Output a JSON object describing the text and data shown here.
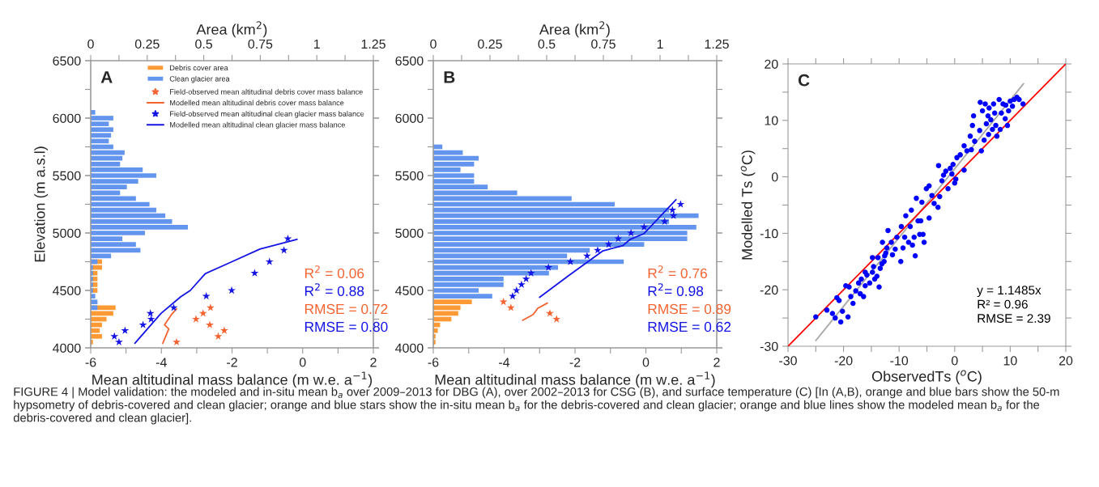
{
  "chart_data": [
    {
      "type": "bar",
      "orientation": "horizontal",
      "x2label": "Area (km$^{2}$)",
      "tick_labels": "x",
      "x2lim": [
        0,
        1.25
      ],
      "x2ticks": [
        0,
        {
          "value": 0.125,
          "label": null
        },
        0.25,
        {
          "value": 0.375,
          "label": null
        },
        0.5,
        {
          "value": 0.625,
          "label": null
        },
        0.75,
        {
          "value": 0.875,
          "label": null
        },
        1,
        {
          "value": 1.125,
          "label": null
        },
        1.25
      ],
      "ylim": [
        4000,
        6500
      ],
      "yticks": [
        4000,
        {
          "value": 4250,
          "label": null
        },
        4500,
        {
          "value": 4750,
          "label": null
        },
        5000,
        {
          "value": 5250,
          "label": null
        },
        5500,
        {
          "value": 5750,
          "label": null
        },
        6000,
        {
          "value": 6250,
          "label": null
        },
        6500
      ],
      "legend": "top right",
      "x": [
        4050,
        4100,
        4150,
        4200,
        4250,
        4300,
        4350,
        4400,
        4450,
        4500,
        4550,
        4600,
        4650,
        4700,
        4750,
        4800,
        4850,
        4900,
        4950,
        5000,
        5050,
        5100,
        5150,
        5200,
        5250,
        5300,
        5350,
        5400,
        5450,
        5500,
        5550,
        5600,
        5650,
        5700,
        5750,
        5800,
        5850,
        5900,
        5950,
        6000,
        6050
      ],
      "series": [
        {
          "name": "Debris cover area",
          "axis": "x2",
          "color": "#fd9a35",
          "values": [
            0.01,
            0.05,
            0.04,
            0.05,
            0.07,
            0.1,
            0.11,
            null,
            null,
            0.03,
            0.03,
            0.03,
            0.03,
            0.05,
            0.05,
            null,
            null,
            null,
            null,
            null,
            null,
            null,
            null,
            null,
            null,
            null,
            null,
            null,
            null,
            null,
            null,
            null,
            null,
            null,
            null,
            null,
            null,
            null,
            null,
            null,
            null
          ]
        },
        {
          "name": "Clean glacier area",
          "axis": "x2",
          "color": "#6395ee",
          "values": [
            null,
            null,
            null,
            null,
            null,
            null,
            0.03,
            0.03,
            0.02,
            0.01,
            0.01,
            0.01,
            0.01,
            0.01,
            0.03,
            0.09,
            0.22,
            0.2,
            0.14,
            0.24,
            0.43,
            0.36,
            0.33,
            0.29,
            0.26,
            0.2,
            0.13,
            0.16,
            0.21,
            0.29,
            0.23,
            0.13,
            0.14,
            0.15,
            0.1,
            0.08,
            0.09,
            0.1,
            0.08,
            0.1,
            0.02
          ]
        }
      ]
    },
    {
      "type": "line",
      "title": "A",
      "xlabel": "Mean altitudinal mass balance (m w.e. a$^{−1}$)",
      "ylabel": "Elevation (m a.s.l)",
      "xlim": [
        -6,
        2
      ],
      "xticks": [
        -6,
        {
          "value": -5,
          "label": null
        },
        -4,
        {
          "value": -3,
          "label": null
        },
        -2,
        {
          "value": -1,
          "label": null
        },
        0,
        {
          "value": 1,
          "label": null
        },
        2
      ],
      "ylim": [
        4000,
        6500
      ],
      "yticks": [
        4000,
        {
          "value": 4250,
          "label": null
        },
        4500,
        {
          "value": 4750,
          "label": null
        },
        5000,
        {
          "value": 5250,
          "label": null
        },
        5500,
        {
          "value": 5750,
          "label": null
        },
        6000,
        {
          "value": 6250,
          "label": null
        },
        6500
      ],
      "legend": "top right",
      "series": [
        {
          "name": "Field-observed mean altitudinal debris cover mass balance",
          "type": "scatter",
          "marker": "star",
          "color": "#f4622f",
          "x": [
            -2.61,
            -2.82,
            -3.02,
            -2.63,
            -2.22,
            -2.39,
            -3.57
          ],
          "values": [
            4350,
            4300,
            4250,
            4200,
            4150,
            4100,
            4050
          ]
        },
        {
          "name": "Modelled mean altitudinal debris cover mass balance",
          "type": "line",
          "color": "#f4622f",
          "x": [
            -3.96,
            -3.85,
            -3.79,
            -3.91,
            -3.7,
            -3.57
          ],
          "values": [
            4040,
            4120,
            4165,
            4200,
            4295,
            4340
          ]
        },
        {
          "name": "Field-observed mean altitudinal clean glacier mass balance",
          "type": "scatter",
          "marker": "star",
          "color": "#1414e6",
          "x": [
            -0.42,
            -0.53,
            -0.94,
            -1.36,
            -2.01,
            -2.73,
            -3.65,
            -4.31,
            -4.29,
            -4.52,
            -5.03,
            -5.33,
            -5.2
          ],
          "values": [
            4950,
            4850,
            4750,
            4650,
            4500,
            4450,
            4350,
            4300,
            4250,
            4200,
            4150,
            4100,
            4050
          ]
        },
        {
          "name": "Modelled mean altitudinal clean glacier mass balance",
          "type": "line",
          "color": "#1414e6",
          "x": [
            -4.75,
            -4.01,
            -3.45,
            -3.18,
            -2.76,
            -2.04,
            -1.21,
            -0.16
          ],
          "values": [
            4040,
            4300,
            4445,
            4500,
            4645,
            4745,
            4860,
            4945
          ]
        }
      ],
      "annotations": [
        "R$^{2}$ = 0.06",
        "R$^{2}$ = 0.88",
        "RMSE = 0.72",
        "RMSE = 0.80"
      ]
    },
    {
      "type": "bar",
      "orientation": "horizontal",
      "x2label": "Area (km$^{2}$)",
      "tick_labels": "x",
      "x2lim": [
        0,
        1.25
      ],
      "x2ticks": [
        0,
        {
          "value": 0.125,
          "label": null
        },
        0.25,
        {
          "value": 0.375,
          "label": null
        },
        0.5,
        {
          "value": 0.625,
          "label": null
        },
        0.75,
        {
          "value": 0.875,
          "label": null
        },
        1,
        {
          "value": 1.125,
          "label": null
        },
        1.25
      ],
      "ylim": [
        4000,
        6500
      ],
      "yticks": [
        4000,
        {
          "value": 4250,
          "label": null
        },
        4500,
        {
          "value": 4750,
          "label": null
        },
        5000,
        {
          "value": 5250,
          "label": null
        },
        5500,
        {
          "value": 5750,
          "label": null
        },
        6000,
        {
          "value": 6250,
          "label": null
        },
        6500
      ],
      "x": [
        4050,
        4100,
        4150,
        4200,
        4250,
        4300,
        4350,
        4400,
        4450,
        4500,
        4550,
        4600,
        4650,
        4700,
        4750,
        4800,
        4850,
        4900,
        4950,
        5000,
        5050,
        5100,
        5150,
        5200,
        5250,
        5300,
        5350,
        5400,
        5450,
        5500,
        5550,
        5600,
        5650,
        5700,
        5750
      ],
      "series": [
        {
          "axis": "x2",
          "color": "#fd9a35",
          "values": [
            0.01,
            0.01,
            0.02,
            0.03,
            0.08,
            0.11,
            0.12,
            0.17,
            null,
            null,
            null,
            null,
            null,
            null,
            null,
            null,
            null,
            null,
            null,
            null,
            null,
            null,
            null,
            null,
            null,
            null,
            null,
            null,
            null,
            null,
            null,
            null,
            null,
            null,
            null
          ]
        },
        {
          "axis": "x2",
          "color": "#6395ee",
          "values": [
            null,
            null,
            null,
            null,
            null,
            null,
            null,
            null,
            0.26,
            0.2,
            0.31,
            0.31,
            0.51,
            0.55,
            0.84,
            0.59,
            0.69,
            0.93,
            1.12,
            1.12,
            1.16,
            1.04,
            1.17,
            1.04,
            0.8,
            0.61,
            0.37,
            0.24,
            0.18,
            0.18,
            0.12,
            0.18,
            0.2,
            0.13,
            0.04
          ]
        }
      ]
    },
    {
      "type": "line",
      "title": "B",
      "xlabel": "Mean altitudinal mass balance (m w.e. a$^{−1}$)",
      "xlim": [
        -6,
        2
      ],
      "xticks": [
        -6,
        {
          "value": -5,
          "label": null
        },
        -4,
        {
          "value": -3,
          "label": null
        },
        -2,
        {
          "value": -1,
          "label": null
        },
        0,
        {
          "value": 1,
          "label": null
        },
        2
      ],
      "ylim": [
        4000,
        6500
      ],
      "yticks": [
        4000,
        {
          "value": 4250,
          "label": null
        },
        4500,
        {
          "value": 4750,
          "label": null
        },
        5000,
        {
          "value": 5250,
          "label": null
        },
        5500,
        {
          "value": 5750,
          "label": null
        },
        6000,
        {
          "value": 6250,
          "label": null
        },
        6500
      ],
      "series": [
        {
          "type": "scatter",
          "marker": "star",
          "color": "#f4622f",
          "x": [
            -4.02,
            -3.81,
            -2.71,
            -2.52
          ],
          "values": [
            4400,
            4350,
            4300,
            4250
          ]
        },
        {
          "type": "line",
          "color": "#f4622f",
          "x": [
            -3.48,
            -3.18,
            -3.05,
            -2.78
          ],
          "values": [
            4240,
            4290,
            4345,
            4390
          ]
        },
        {
          "type": "scatter",
          "marker": "star",
          "color": "#1414e6",
          "x": [
            0.98,
            0.75,
            0.78,
            0.53,
            -0.05,
            -0.42,
            -0.78,
            -1.05,
            -1.36,
            -1.66,
            -2.13,
            -2.75,
            -3.24,
            -3.38,
            -3.51,
            -3.65,
            -3.76
          ],
          "values": [
            5250,
            5200,
            5150,
            5100,
            5050,
            5000,
            4950,
            4900,
            4850,
            4800,
            4750,
            4700,
            4650,
            4600,
            4550,
            4500,
            4450
          ]
        },
        {
          "type": "line",
          "color": "#1414e6",
          "x": [
            -3.0,
            -2.15,
            -1.21,
            -0.65,
            -0.44,
            -0.05,
            0.85
          ],
          "values": [
            4440,
            4635,
            4845,
            4890,
            4945,
            4995,
            5290
          ]
        }
      ],
      "annotations": [
        "R$^{2}$ = 0.76",
        "R$^{2}$= 0.98",
        "RMSE = 0.89",
        "RMSE = 0.62"
      ]
    },
    {
      "type": "scatter",
      "title": "C",
      "xlabel": "ObservedTs ($^{o}$C)",
      "ylabel": "Modelled Ts ($^{o}$C)",
      "xlim": [
        -30,
        20
      ],
      "xticks": [
        -30,
        {
          "value": -25,
          "label": null
        },
        -20,
        {
          "value": -15,
          "label": null
        },
        -10,
        {
          "value": -5,
          "label": null
        },
        0,
        {
          "value": 5,
          "label": null
        },
        10,
        {
          "value": 15,
          "label": null
        },
        20
      ],
      "ylim": [
        -30,
        20
      ],
      "yticks": [
        -30,
        {
          "value": -25,
          "label": null
        },
        -20,
        {
          "value": -15,
          "label": null
        },
        -10,
        {
          "value": -5,
          "label": null
        },
        0,
        {
          "value": 5,
          "label": null
        },
        10,
        {
          "value": 15,
          "label": null
        },
        20
      ],
      "series": [
        {
          "type": "line",
          "color": "#a8a8a8",
          "x": [
            -25,
            12.4
          ],
          "values": [
            -29,
            16.5
          ]
        },
        {
          "type": "line",
          "color": "#ff0000",
          "x": [
            -30,
            20
          ],
          "values": [
            -30,
            20
          ]
        },
        {
          "type": "scatter",
          "marker": "circle",
          "color": "#0000ff",
          "x": [
            -25,
            -23.0,
            -22.0,
            -21.5,
            -21.2,
            -20.5,
            -20.8,
            -20.2,
            -19.2,
            -19.6,
            -19.0,
            -18.7,
            -18.3,
            -17.8,
            -17.3,
            -16.8,
            -17.0,
            -16.4,
            -16.1,
            -15.8,
            -15.3,
            -14.8,
            -14.6,
            -14.4,
            -14.0,
            -13.8,
            -13.4,
            -13.1,
            -13.6,
            -12.7,
            -12.4,
            -13.0,
            -12.6,
            -12.0,
            -12.2,
            -11.4,
            -11.2,
            -10.7,
            -10.4,
            -9.7,
            -9.6,
            -9.3,
            -9.0,
            -8.8,
            -8.3,
            -8.0,
            -7.6,
            -7.8,
            -7.3,
            -7.1,
            -6.9,
            -6.6,
            -6.3,
            -6.1,
            -5.9,
            -5.7,
            -5.5,
            -4.6,
            -5.1,
            -4.6,
            -4.1,
            -3.7,
            -3.0,
            -2.9,
            -2.7,
            -2.3,
            -2.0,
            -1.6,
            -1.2,
            -0.8,
            -0.5,
            -0.3,
            0.0,
            0.2,
            0.4,
            1.0,
            1.7,
            1.7,
            2.2,
            2.8,
            3.0,
            3.2,
            3.4,
            3.6,
            4.5,
            4.6,
            4.8,
            5.0,
            5.3,
            5.5,
            5.7,
            6.0,
            6.1,
            6.2,
            6.5,
            6.8,
            7.0,
            7.2,
            7.4,
            7.6,
            8.0,
            8.2,
            8.4,
            8.7,
            9.1,
            9.2,
            9.5,
            9.7,
            10.0,
            10.4,
            10.7,
            11.2,
            11.6,
            12.3,
            -14.8,
            -16.1
          ],
          "values": [
            -24.8,
            -23.6,
            -24.2,
            -25.0,
            -21.4,
            -25.7,
            -21.9,
            -23.8,
            -24.8,
            -19.3,
            -19.5,
            -21.2,
            -22.4,
            -20.2,
            -18.8,
            -18.1,
            -20.7,
            -21.2,
            -19.3,
            -17.4,
            -18.8,
            -16.9,
            -15.9,
            -18.1,
            -17.6,
            -14.3,
            -16.2,
            -15.4,
            -19.5,
            -15.0,
            -13.5,
            -11.6,
            -14.0,
            -9.5,
            -12.6,
            -11.6,
            -13.8,
            -12.8,
            -10.7,
            -15.0,
            -8.8,
            -12.6,
            -10.7,
            -6.9,
            -11.6,
            -8.8,
            -12.1,
            -5.9,
            -10.7,
            -14.0,
            -3.8,
            -7.8,
            -10.2,
            -7.8,
            -4.5,
            -10.2,
            -11.6,
            -7.3,
            -2.1,
            -1.6,
            -3.3,
            -4.7,
            -5.4,
            2.0,
            -3.5,
            -0.7,
            0.3,
            1.0,
            -2.1,
            1.5,
            0.5,
            2.2,
            -1.1,
            -0.4,
            3.4,
            3.9,
            1.2,
            5.5,
            4.6,
            7.2,
            4.8,
            9.1,
            10.8,
            6.3,
            8.2,
            13.2,
            4.6,
            11.7,
            6.5,
            12.9,
            9.4,
            10.8,
            7.5,
            12.2,
            10.1,
            8.4,
            12.9,
            11.3,
            9.1,
            7.2,
            13.7,
            8.4,
            11.3,
            12.9,
            10.3,
            12.7,
            9.1,
            11.7,
            13.4,
            12.5,
            13.7,
            14.1,
            13.7,
            12.9,
            -14.3,
            -16.9
          ]
        }
      ],
      "annotations": [
        "y = 1.1485x",
        "R² = 0.96",
        "RMSE = 2.39"
      ]
    },
    {
      "type": "other",
      "annotations": [
        "FIGURE 4 | Model validation: the modeled and in-situ mean b$_{a}$ over 2009–2013 for DBG (A), over 2002–2013 for CSG (B), and surface temperature (C) [In (A,B), orange and blue bars show the 50-m hypsometry of debris-covered and clean glacier; orange and blue stars show the in-situ mean b$_{a}$ for the debris-covered and clean glacier; orange and blue lines show the modeled mean b$_{a}$ for the debris-covered and clean glacier]."
      ]
    }
  ]
}
